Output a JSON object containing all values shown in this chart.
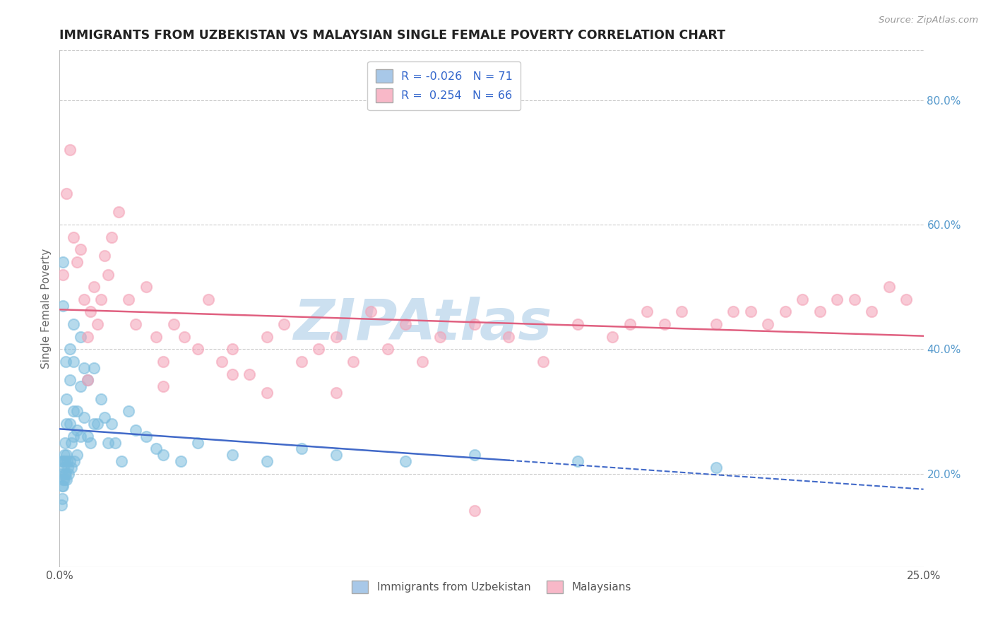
{
  "title": "IMMIGRANTS FROM UZBEKISTAN VS MALAYSIAN SINGLE FEMALE POVERTY CORRELATION CHART",
  "source_text": "Source: ZipAtlas.com",
  "ylabel": "Single Female Poverty",
  "xlim": [
    0.0,
    0.25
  ],
  "ylim": [
    0.05,
    0.88
  ],
  "ytick_right_positions": [
    0.2,
    0.4,
    0.6,
    0.8
  ],
  "watermark": "ZIPAtlas",
  "watermark_color": "#cce0f0",
  "uzbekistan_color": "#7bbcde",
  "malaysian_color": "#f4a0b5",
  "uzbekistan_line_color": "#4169c8",
  "malaysian_line_color": "#e06080",
  "background_color": "#ffffff",
  "grid_color": "#cccccc",
  "uzbekistan_scatter_x": [
    0.0005,
    0.0005,
    0.0007,
    0.0007,
    0.0008,
    0.0009,
    0.001,
    0.001,
    0.001,
    0.001,
    0.0012,
    0.0013,
    0.0014,
    0.0015,
    0.0015,
    0.0016,
    0.0017,
    0.0018,
    0.002,
    0.002,
    0.002,
    0.002,
    0.0022,
    0.0023,
    0.0025,
    0.003,
    0.003,
    0.003,
    0.003,
    0.0033,
    0.0035,
    0.004,
    0.004,
    0.004,
    0.004,
    0.0043,
    0.005,
    0.005,
    0.005,
    0.006,
    0.006,
    0.006,
    0.007,
    0.007,
    0.008,
    0.008,
    0.009,
    0.01,
    0.01,
    0.011,
    0.012,
    0.013,
    0.014,
    0.015,
    0.016,
    0.018,
    0.02,
    0.022,
    0.025,
    0.028,
    0.03,
    0.035,
    0.04,
    0.05,
    0.06,
    0.07,
    0.08,
    0.1,
    0.12,
    0.15,
    0.19
  ],
  "uzbekistan_scatter_y": [
    0.2,
    0.15,
    0.22,
    0.18,
    0.16,
    0.19,
    0.54,
    0.47,
    0.22,
    0.18,
    0.21,
    0.19,
    0.23,
    0.25,
    0.2,
    0.22,
    0.38,
    0.2,
    0.32,
    0.28,
    0.23,
    0.19,
    0.22,
    0.21,
    0.2,
    0.4,
    0.35,
    0.28,
    0.22,
    0.21,
    0.25,
    0.44,
    0.38,
    0.3,
    0.26,
    0.22,
    0.3,
    0.27,
    0.23,
    0.42,
    0.34,
    0.26,
    0.37,
    0.29,
    0.35,
    0.26,
    0.25,
    0.37,
    0.28,
    0.28,
    0.32,
    0.29,
    0.25,
    0.28,
    0.25,
    0.22,
    0.3,
    0.27,
    0.26,
    0.24,
    0.23,
    0.22,
    0.25,
    0.23,
    0.22,
    0.24,
    0.23,
    0.22,
    0.23,
    0.22,
    0.21
  ],
  "malaysian_scatter_x": [
    0.001,
    0.002,
    0.003,
    0.004,
    0.005,
    0.006,
    0.007,
    0.008,
    0.009,
    0.01,
    0.011,
    0.012,
    0.013,
    0.014,
    0.015,
    0.017,
    0.02,
    0.022,
    0.025,
    0.028,
    0.03,
    0.033,
    0.036,
    0.04,
    0.043,
    0.047,
    0.05,
    0.055,
    0.06,
    0.065,
    0.07,
    0.075,
    0.08,
    0.085,
    0.09,
    0.095,
    0.1,
    0.105,
    0.11,
    0.12,
    0.13,
    0.14,
    0.15,
    0.16,
    0.165,
    0.17,
    0.175,
    0.18,
    0.19,
    0.195,
    0.2,
    0.205,
    0.21,
    0.215,
    0.22,
    0.225,
    0.23,
    0.235,
    0.24,
    0.245,
    0.12,
    0.06,
    0.08,
    0.03,
    0.008,
    0.05
  ],
  "malaysian_scatter_y": [
    0.52,
    0.65,
    0.72,
    0.58,
    0.54,
    0.56,
    0.48,
    0.42,
    0.46,
    0.5,
    0.44,
    0.48,
    0.55,
    0.52,
    0.58,
    0.62,
    0.48,
    0.44,
    0.5,
    0.42,
    0.38,
    0.44,
    0.42,
    0.4,
    0.48,
    0.38,
    0.4,
    0.36,
    0.42,
    0.44,
    0.38,
    0.4,
    0.42,
    0.38,
    0.46,
    0.4,
    0.44,
    0.38,
    0.42,
    0.44,
    0.42,
    0.38,
    0.44,
    0.42,
    0.44,
    0.46,
    0.44,
    0.46,
    0.44,
    0.46,
    0.46,
    0.44,
    0.46,
    0.48,
    0.46,
    0.48,
    0.48,
    0.46,
    0.5,
    0.48,
    0.14,
    0.33,
    0.33,
    0.34,
    0.35,
    0.36
  ]
}
